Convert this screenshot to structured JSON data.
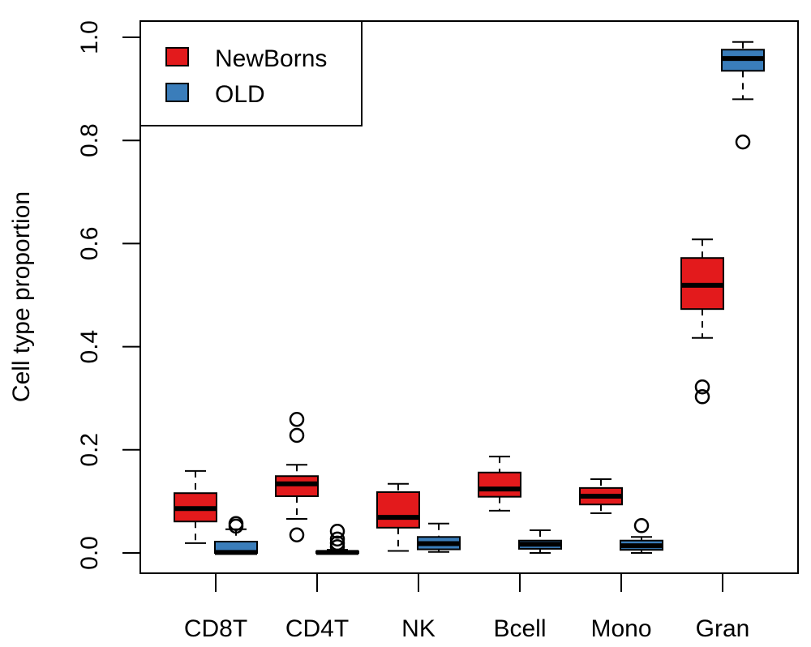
{
  "chart_data": {
    "type": "boxplot",
    "title": "",
    "xlabel": "",
    "ylabel": "Cell type proportion",
    "ylim": [
      0,
      1.0
    ],
    "yticks": [
      0.0,
      0.2,
      0.4,
      0.6,
      0.8,
      1.0
    ],
    "ytick_labels": [
      "0.0",
      "0.2",
      "0.4",
      "0.6",
      "0.8",
      "1.0"
    ],
    "categories": [
      "CD8T",
      "CD4T",
      "NK",
      "Bcell",
      "Mono",
      "Gran"
    ],
    "legend": {
      "placement": "top-left",
      "entries": [
        {
          "label": "NewBorns",
          "color": "#E31A1C"
        },
        {
          "label": "OLD",
          "color": "#3A7DBA"
        }
      ]
    },
    "series": [
      {
        "name": "NewBorns",
        "color": "#E31A1C",
        "boxes": [
          {
            "category": "CD8T",
            "whisker_low": 0.019,
            "q1": 0.061,
            "median": 0.086,
            "q3": 0.116,
            "whisker_high": 0.159,
            "outliers": []
          },
          {
            "category": "CD4T",
            "whisker_low": 0.066,
            "q1": 0.11,
            "median": 0.134,
            "q3": 0.149,
            "whisker_high": 0.171,
            "outliers": [
              0.259,
              0.228,
              0.035
            ]
          },
          {
            "category": "NK",
            "whisker_low": 0.004,
            "q1": 0.049,
            "median": 0.069,
            "q3": 0.118,
            "whisker_high": 0.134,
            "outliers": []
          },
          {
            "category": "Bcell",
            "whisker_low": 0.082,
            "q1": 0.109,
            "median": 0.124,
            "q3": 0.156,
            "whisker_high": 0.187,
            "outliers": []
          },
          {
            "category": "Mono",
            "whisker_low": 0.077,
            "q1": 0.094,
            "median": 0.11,
            "q3": 0.126,
            "whisker_high": 0.143,
            "outliers": []
          },
          {
            "category": "Gran",
            "whisker_low": 0.417,
            "q1": 0.473,
            "median": 0.519,
            "q3": 0.572,
            "whisker_high": 0.608,
            "outliers": [
              0.322,
              0.303
            ]
          }
        ]
      },
      {
        "name": "OLD",
        "color": "#3A7DBA",
        "boxes": [
          {
            "category": "CD8T",
            "whisker_low": 0.0,
            "q1": 0.0,
            "median": 0.001,
            "q3": 0.022,
            "whisker_high": 0.046,
            "outliers": [
              0.057,
              0.052
            ]
          },
          {
            "category": "CD4T",
            "whisker_low": 0.0,
            "q1": 0.0,
            "median": 0.001,
            "q3": 0.003,
            "whisker_high": 0.006,
            "outliers": [
              0.042,
              0.027,
              0.019,
              0.012
            ]
          },
          {
            "category": "NK",
            "whisker_low": 0.002,
            "q1": 0.007,
            "median": 0.018,
            "q3": 0.031,
            "whisker_high": 0.057,
            "outliers": []
          },
          {
            "category": "Bcell",
            "whisker_low": 0.0,
            "q1": 0.008,
            "median": 0.017,
            "q3": 0.024,
            "whisker_high": 0.044,
            "outliers": []
          },
          {
            "category": "Mono",
            "whisker_low": 0.0,
            "q1": 0.006,
            "median": 0.014,
            "q3": 0.024,
            "whisker_high": 0.031,
            "outliers": [
              0.053
            ]
          },
          {
            "category": "Gran",
            "whisker_low": 0.88,
            "q1": 0.935,
            "median": 0.959,
            "q3": 0.976,
            "whisker_high": 0.991,
            "outliers": [
              0.797
            ]
          }
        ]
      }
    ]
  }
}
